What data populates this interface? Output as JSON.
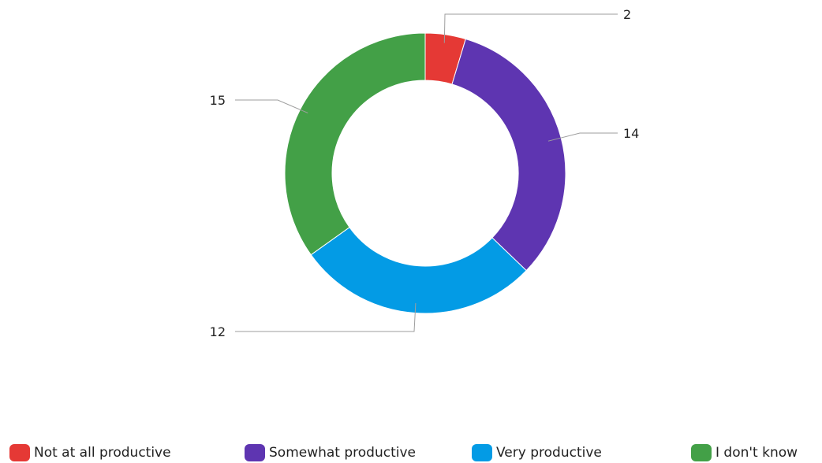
{
  "chart_data": {
    "type": "pie",
    "variant": "donut",
    "title": "",
    "categories": [
      "Not at all productive",
      "Somewhat productive",
      "Very productive",
      "I don't know"
    ],
    "values": [
      2,
      14,
      12,
      15
    ],
    "colors": [
      "#e53935",
      "#5e35b1",
      "#039be5",
      "#43a047"
    ],
    "data_labels": [
      "2",
      "14",
      "12",
      "15"
    ],
    "legend_position": "bottom"
  }
}
